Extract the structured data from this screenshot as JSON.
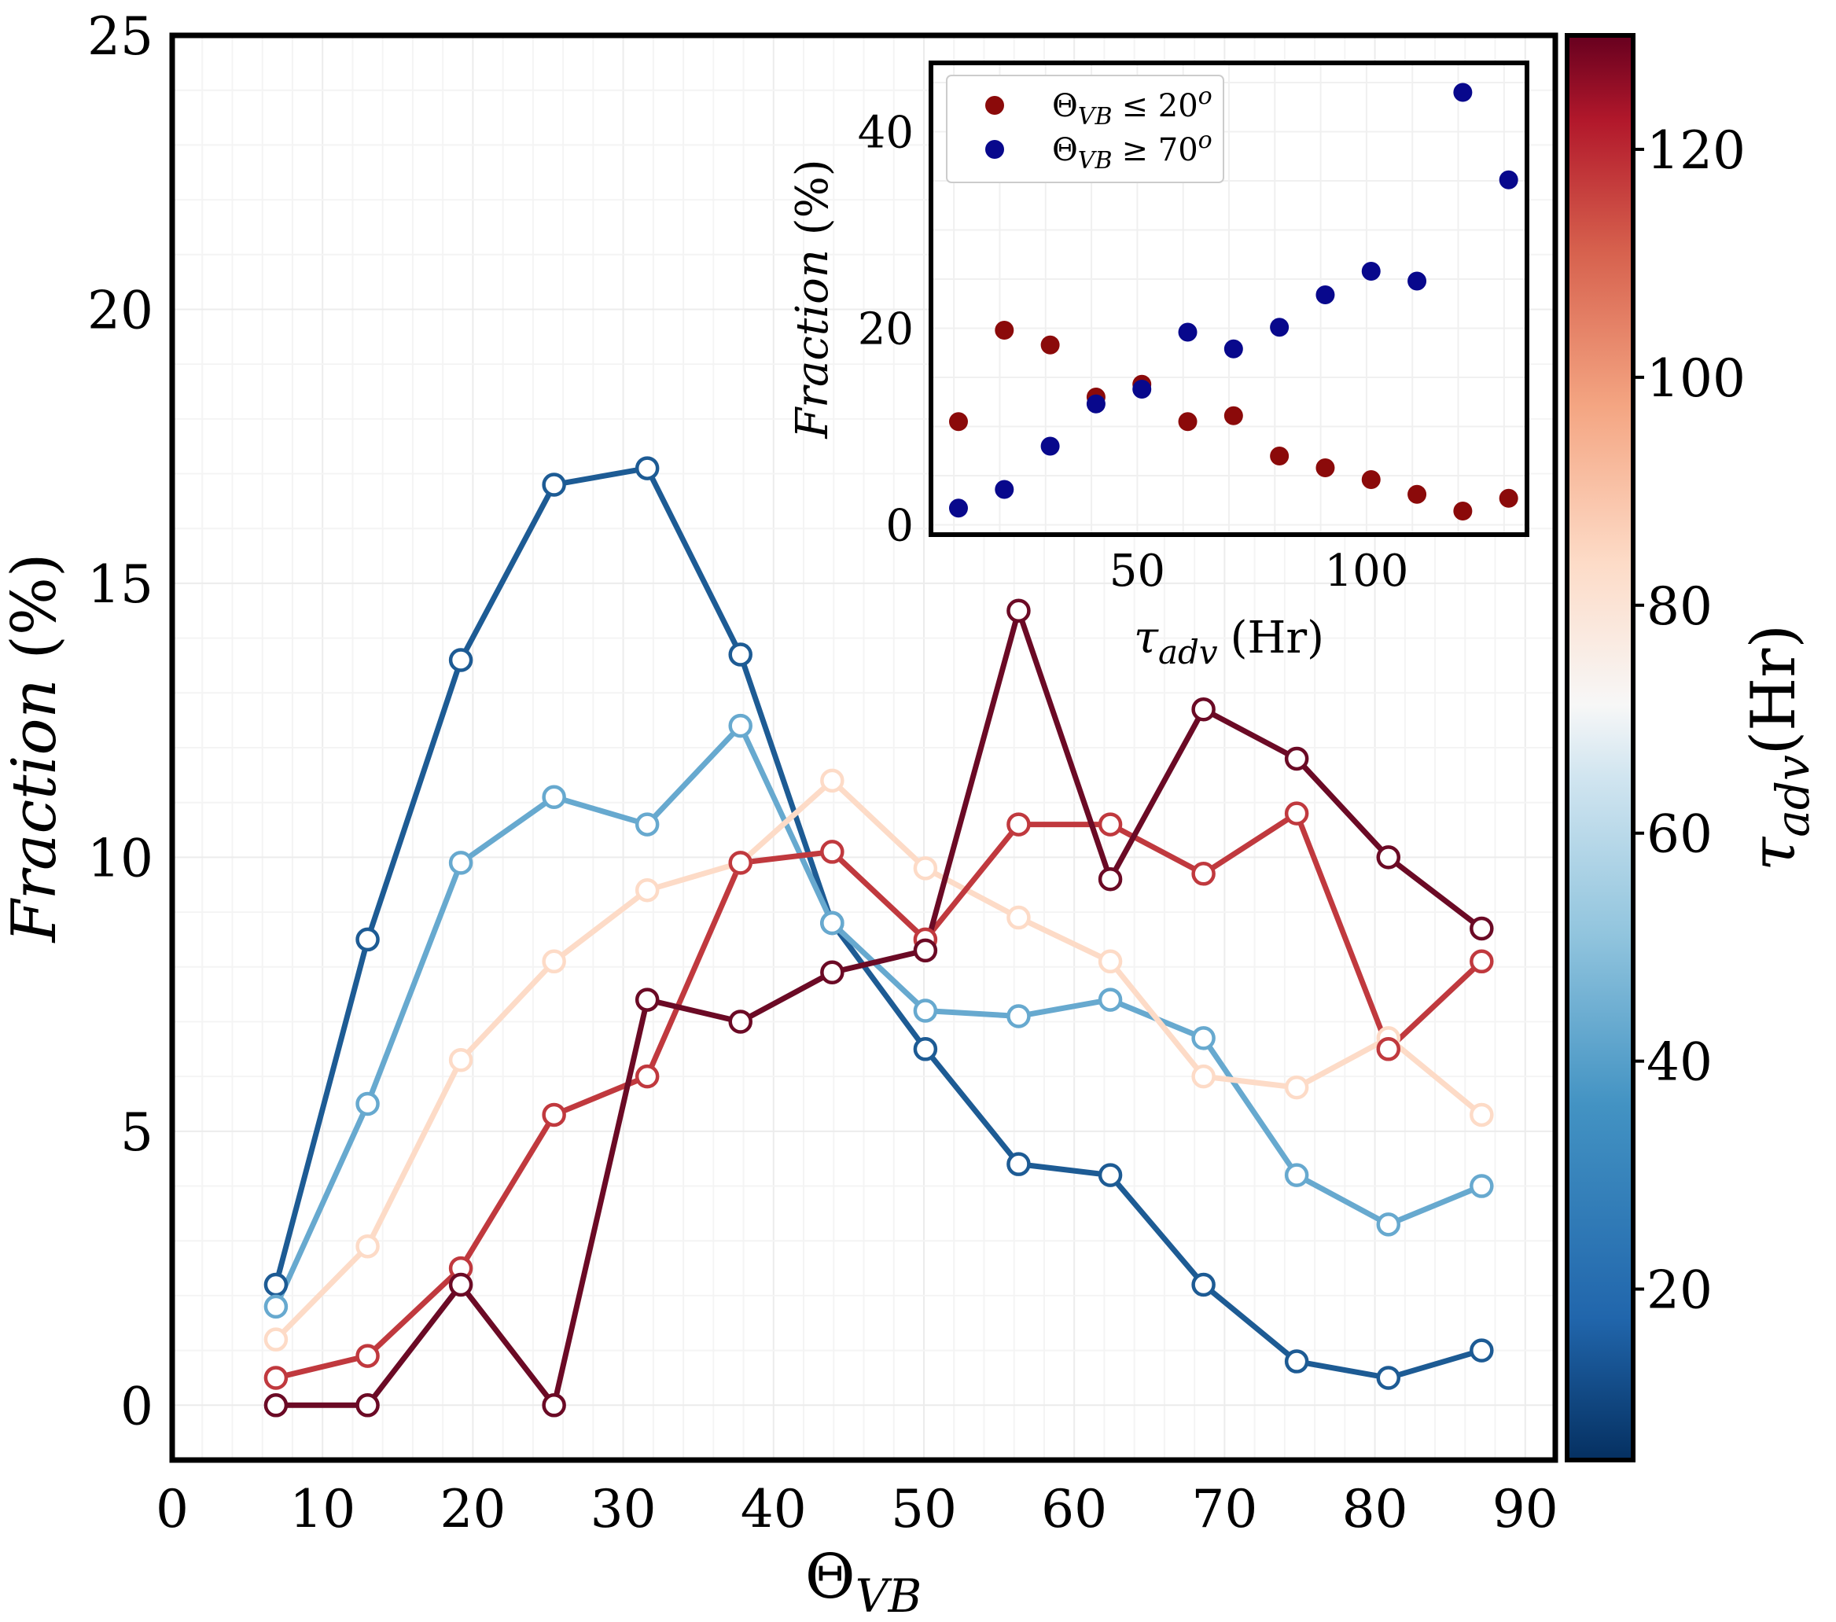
{
  "chart_data": [
    {
      "type": "line",
      "xlabel_main": "Θ",
      "xlabel_sub": "VB",
      "ylabel": "Fraction",
      "ylabel_unit": "(%)",
      "xlim": [
        0,
        92
      ],
      "ylim": [
        -1,
        25
      ],
      "xticks": [
        "0",
        "10",
        "20",
        "30",
        "40",
        "50",
        "60",
        "70",
        "80",
        "90"
      ],
      "xtick_values": [
        0,
        10,
        20,
        30,
        40,
        50,
        60,
        70,
        80,
        90
      ],
      "yticks": [
        "0",
        "5",
        "10",
        "15",
        "20",
        "25"
      ],
      "ytick_values": [
        0,
        5,
        10,
        15,
        20,
        25
      ],
      "grid": true,
      "x": [
        6.9,
        13.0,
        19.2,
        25.4,
        31.6,
        37.8,
        43.9,
        50.1,
        56.3,
        62.4,
        68.6,
        74.8,
        80.9,
        87.1
      ],
      "series": [
        {
          "color": "#1d5b94",
          "values": [
            2.2,
            8.5,
            13.6,
            16.8,
            17.1,
            13.7,
            8.8,
            6.5,
            4.4,
            4.2,
            2.2,
            0.8,
            0.5,
            1.0
          ]
        },
        {
          "color": "#67a9cf",
          "values": [
            1.8,
            5.5,
            9.9,
            11.1,
            10.6,
            12.4,
            8.8,
            7.2,
            7.1,
            7.4,
            6.7,
            4.2,
            3.3,
            4.0
          ]
        },
        {
          "color": "#fddbc7",
          "values": [
            1.2,
            2.9,
            6.3,
            8.1,
            9.4,
            9.9,
            11.4,
            9.8,
            8.9,
            8.1,
            6.0,
            5.8,
            6.7,
            5.3
          ]
        },
        {
          "color": "#c0393e",
          "values": [
            0.5,
            0.9,
            2.5,
            5.3,
            6.0,
            9.9,
            10.1,
            8.5,
            10.6,
            10.6,
            9.7,
            10.8,
            6.5,
            8.1
          ]
        },
        {
          "color": "#6b0a25",
          "values": [
            0.0,
            0.0,
            2.2,
            0.0,
            7.4,
            7.0,
            7.9,
            8.3,
            14.5,
            9.6,
            12.7,
            11.8,
            10.0,
            8.7
          ]
        }
      ],
      "colorbar": {
        "label_main": "τ",
        "label_sub": "adv",
        "label_unit": "(Hr)",
        "range": [
          5,
          130
        ],
        "ticks": [
          "20",
          "40",
          "60",
          "80",
          "100",
          "120"
        ],
        "tick_values": [
          20,
          40,
          60,
          80,
          100,
          120
        ]
      }
    },
    {
      "type": "scatter",
      "xlabel_main": "τ",
      "xlabel_sub": "adv",
      "xlabel_unit": "(Hr)",
      "ylabel": "Fraction",
      "ylabel_unit": "(%)",
      "xlim": [
        5,
        135
      ],
      "ylim": [
        -1,
        47
      ],
      "xticks": [
        "50",
        "100"
      ],
      "xtick_values": [
        50,
        100
      ],
      "yticks": [
        "0",
        "20",
        "40"
      ],
      "ytick_values": [
        0,
        20,
        40
      ],
      "grid": true,
      "legend_position": "top-left",
      "series": [
        {
          "name_main": "Θ",
          "name_sub": "VB",
          "name_rest": "≤ 20",
          "name_sup": "o",
          "color": "#8b0a0a",
          "x": [
            11,
            21,
            31,
            41,
            51,
            61,
            71,
            81,
            91,
            101,
            111,
            121,
            131
          ],
          "y": [
            10.5,
            19.8,
            18.3,
            13.0,
            14.3,
            10.5,
            11.1,
            7.0,
            5.8,
            4.6,
            3.1,
            1.4,
            2.7
          ]
        },
        {
          "name_main": "Θ",
          "name_sub": "VB",
          "name_rest": "≥ 70",
          "name_sup": "o",
          "color": "#08088c",
          "x": [
            11,
            21,
            31,
            41,
            51,
            61,
            71,
            81,
            91,
            101,
            111,
            121,
            131
          ],
          "y": [
            1.7,
            3.6,
            8.0,
            12.3,
            13.8,
            19.6,
            17.9,
            20.1,
            23.4,
            25.8,
            24.8,
            44.0,
            35.1
          ]
        }
      ]
    }
  ]
}
